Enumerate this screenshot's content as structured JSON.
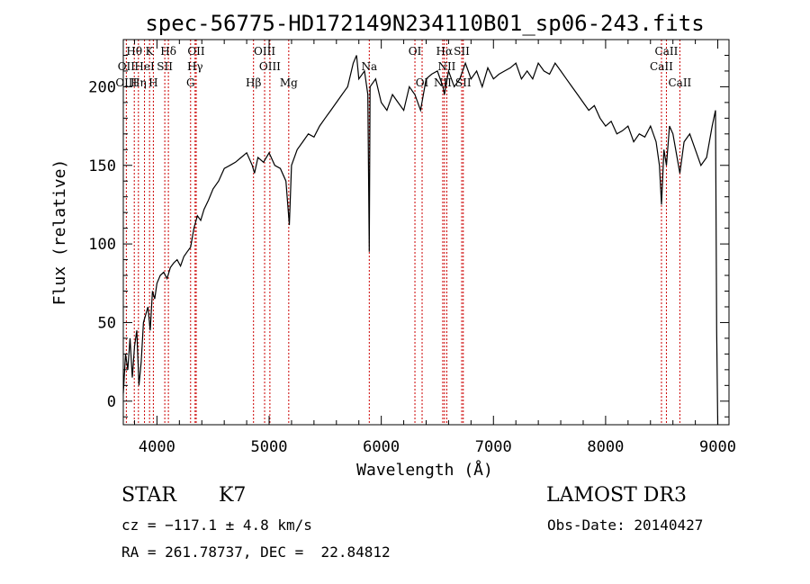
{
  "chart_data": {
    "type": "line",
    "title": "spec-56775-HD172149N234110B01_sp06-243.fits",
    "xlabel": "Wavelength (Å)",
    "ylabel": "Flux (relative)",
    "xlim": [
      3700,
      9100
    ],
    "ylim": [
      -15,
      230
    ],
    "xticks": [
      4000,
      5000,
      6000,
      7000,
      8000,
      9000
    ],
    "yticks": [
      0,
      50,
      100,
      150,
      200
    ],
    "line_color": "#000000",
    "marker_color": "#cc0000",
    "series": [
      {
        "x": [
          3700,
          3720,
          3740,
          3760,
          3780,
          3800,
          3820,
          3840,
          3860,
          3880,
          3900,
          3920,
          3940,
          3960,
          3980,
          4000,
          4030,
          4060,
          4090,
          4120,
          4150,
          4180,
          4210,
          4240,
          4270,
          4300,
          4330,
          4360,
          4390,
          4420,
          4460,
          4500,
          4550,
          4600,
          4650,
          4700,
          4750,
          4800,
          4850,
          4870,
          4900,
          4950,
          5000,
          5050,
          5100,
          5150,
          5180,
          5200,
          5250,
          5300,
          5350,
          5400,
          5450,
          5500,
          5550,
          5600,
          5650,
          5700,
          5750,
          5780,
          5800,
          5850,
          5880,
          5893,
          5900,
          5950,
          6000,
          6050,
          6100,
          6150,
          6200,
          6250,
          6300,
          6350,
          6400,
          6450,
          6500,
          6550,
          6563,
          6600,
          6650,
          6700,
          6750,
          6800,
          6850,
          6900,
          6950,
          7000,
          7050,
          7100,
          7150,
          7200,
          7250,
          7300,
          7350,
          7400,
          7450,
          7500,
          7550,
          7600,
          7650,
          7700,
          7750,
          7800,
          7850,
          7900,
          7950,
          8000,
          8050,
          8100,
          8150,
          8200,
          8250,
          8300,
          8350,
          8400,
          8450,
          8480,
          8498,
          8520,
          8542,
          8570,
          8600,
          8662,
          8700,
          8750,
          8800,
          8850,
          8900,
          8950,
          8980,
          8990,
          9000
        ],
        "y": [
          5,
          30,
          20,
          40,
          15,
          35,
          45,
          10,
          25,
          50,
          55,
          60,
          45,
          70,
          65,
          75,
          80,
          82,
          78,
          85,
          88,
          90,
          86,
          92,
          95,
          98,
          110,
          118,
          115,
          122,
          128,
          135,
          140,
          148,
          150,
          152,
          155,
          158,
          150,
          145,
          155,
          152,
          158,
          150,
          148,
          140,
          112,
          150,
          160,
          165,
          170,
          168,
          175,
          180,
          185,
          190,
          195,
          200,
          215,
          220,
          205,
          210,
          195,
          95,
          200,
          205,
          190,
          185,
          195,
          190,
          185,
          200,
          195,
          185,
          205,
          208,
          210,
          200,
          195,
          210,
          200,
          205,
          215,
          205,
          210,
          200,
          212,
          205,
          208,
          210,
          212,
          215,
          205,
          210,
          205,
          215,
          210,
          208,
          215,
          210,
          205,
          200,
          195,
          190,
          185,
          188,
          180,
          175,
          178,
          170,
          172,
          175,
          165,
          170,
          168,
          175,
          165,
          150,
          125,
          160,
          150,
          175,
          170,
          145,
          165,
          170,
          160,
          150,
          155,
          175,
          185,
          45,
          -15
        ]
      }
    ],
    "lines": [
      {
        "name": "Hθ",
        "x": 3798,
        "row": 0
      },
      {
        "name": "K",
        "x": 3934,
        "row": 0
      },
      {
        "name": "Hδ",
        "x": 4102,
        "row": 0
      },
      {
        "name": "OII",
        "x": 4350,
        "row": 0
      },
      {
        "name": "OIII",
        "x": 4960,
        "row": 0
      },
      {
        "name": "Na",
        "x": 5893,
        "row": 1
      },
      {
        "name": "OI",
        "x": 6300,
        "row": 0
      },
      {
        "name": "Hα",
        "x": 6563,
        "row": 0
      },
      {
        "name": "SII",
        "x": 6717,
        "row": 0
      },
      {
        "name": "CaII",
        "x": 8542,
        "row": 0
      },
      {
        "name": "OII",
        "x": 3727,
        "row": 1
      },
      {
        "name": "HeI",
        "x": 3889,
        "row": 1
      },
      {
        "name": "SII",
        "x": 4070,
        "row": 1
      },
      {
        "name": "Hγ",
        "x": 4340,
        "row": 1
      },
      {
        "name": "OIII",
        "x": 5007,
        "row": 1
      },
      {
        "name": "NII",
        "x": 6584,
        "row": 1
      },
      {
        "name": "CaII",
        "x": 8498,
        "row": 1
      },
      {
        "name": "OIII",
        "x": 3727,
        "row": 2
      },
      {
        "name": "Hη",
        "x": 3835,
        "row": 2
      },
      {
        "name": "H",
        "x": 3968,
        "row": 2
      },
      {
        "name": "G",
        "x": 4300,
        "row": 2
      },
      {
        "name": "Hβ",
        "x": 4861,
        "row": 2
      },
      {
        "name": "Mg",
        "x": 5175,
        "row": 2
      },
      {
        "name": "OI",
        "x": 6364,
        "row": 2
      },
      {
        "name": "NII",
        "x": 6548,
        "row": 2
      },
      {
        "name": "SII",
        "x": 6731,
        "row": 2
      },
      {
        "name": "CaII",
        "x": 8662,
        "row": 2
      }
    ]
  },
  "info": {
    "class": "STAR",
    "subclass": "K7",
    "survey": "LAMOST DR3",
    "cz": "cz = −117.1 ± 4.8 km/s",
    "obs_date": "Obs-Date: 20140427",
    "radec": "RA = 261.78737, DEC =  22.84812"
  }
}
